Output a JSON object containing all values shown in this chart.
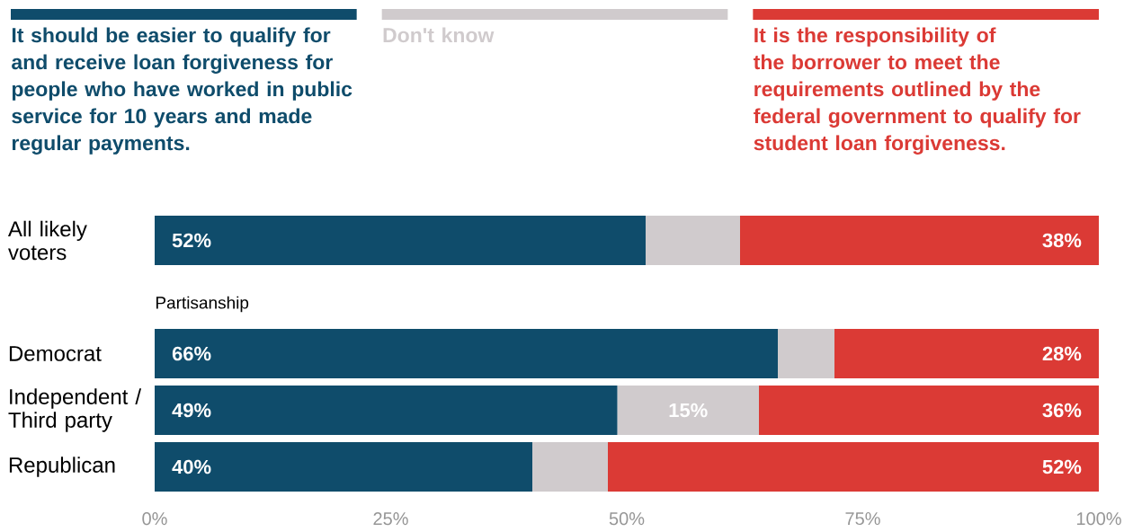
{
  "chart_data": {
    "type": "bar",
    "orientation": "horizontal",
    "stacked": true,
    "categories": [
      "All likely voters",
      null,
      "Democrat",
      "Independent / Third party",
      "Republican"
    ],
    "series": [
      {
        "name": "It should be easier to qualify for and receive loan forgiveness for people who have worked in public service for 10 years and made regular payments.",
        "color": "#0f4c6b",
        "values": [
          52,
          null,
          66,
          49,
          40
        ],
        "value_labels": [
          "52%",
          null,
          "66%",
          "49%",
          "40%"
        ]
      },
      {
        "name": "Don't know",
        "color": "#d0cbcd",
        "values": [
          10,
          null,
          6,
          15,
          8
        ],
        "value_labels": [
          null,
          null,
          null,
          "15%",
          null
        ]
      },
      {
        "name": "It is the responsibility of the borrower to meet the requirements outlined by the federal government to qualify for student loan forgiveness.",
        "color": "#db3a35",
        "values": [
          38,
          null,
          28,
          36,
          52
        ],
        "value_labels": [
          "38%",
          null,
          "28%",
          "36%",
          "52%"
        ]
      }
    ],
    "xlim": [
      0,
      100
    ],
    "xticks": [
      {
        "value": 0,
        "label": "0%"
      },
      {
        "value": 25,
        "label": "25%"
      },
      {
        "value": 50,
        "label": "50%"
      },
      {
        "value": 75,
        "label": "75%"
      },
      {
        "value": 100,
        "label": "100%"
      }
    ],
    "legend": "top",
    "annotations": [
      "Partisanship"
    ]
  }
}
